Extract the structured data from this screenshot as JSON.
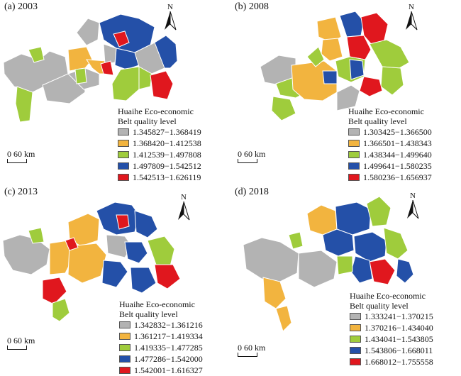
{
  "colors": {
    "gray": "#b3b3b3",
    "orange": "#f2b43f",
    "green": "#9fcc3c",
    "blue": "#2450a8",
    "red": "#e0171e",
    "boundary": "#ffffff"
  },
  "legend_title_line1": "Huaihe Eco-economic",
  "legend_title_line2": "Belt quality level",
  "scalebar": {
    "zero": "0",
    "distance": "60 km"
  },
  "north_label": "N",
  "panels": [
    {
      "label": "(a) 2003",
      "classes": [
        {
          "range": "1.345827−1.368419",
          "color": "gray"
        },
        {
          "range": "1.368420−1.412538",
          "color": "orange"
        },
        {
          "range": "1.412539−1.497808",
          "color": "green"
        },
        {
          "range": "1.497809−1.542512",
          "color": "blue"
        },
        {
          "range": "1.542513−1.626119",
          "color": "red"
        }
      ]
    },
    {
      "label": "(b) 2008",
      "classes": [
        {
          "range": "1.303425−1.366500",
          "color": "gray"
        },
        {
          "range": "1.366501−1.438343",
          "color": "orange"
        },
        {
          "range": "1.438344−1.499640",
          "color": "green"
        },
        {
          "range": "1.499641−1.580235",
          "color": "blue"
        },
        {
          "range": "1.580236−1.656937",
          "color": "red"
        }
      ]
    },
    {
      "label": "(c) 2013",
      "classes": [
        {
          "range": "1.342832−1.361216",
          "color": "gray"
        },
        {
          "range": "1.361217−1.419334",
          "color": "orange"
        },
        {
          "range": "1.419335−1.477285",
          "color": "green"
        },
        {
          "range": "1.477286−1.542000",
          "color": "blue"
        },
        {
          "range": "1.542001−1.616327",
          "color": "red"
        }
      ]
    },
    {
      "label": "(d) 2018",
      "classes": [
        {
          "range": "1.333241−1.370215",
          "color": "gray"
        },
        {
          "range": "1.370216−1.434040",
          "color": "orange"
        },
        {
          "range": "1.434041−1.543805",
          "color": "green"
        },
        {
          "range": "1.543806−1.668011",
          "color": "blue"
        },
        {
          "range": "1.668012−1.755558",
          "color": "red"
        }
      ]
    }
  ]
}
